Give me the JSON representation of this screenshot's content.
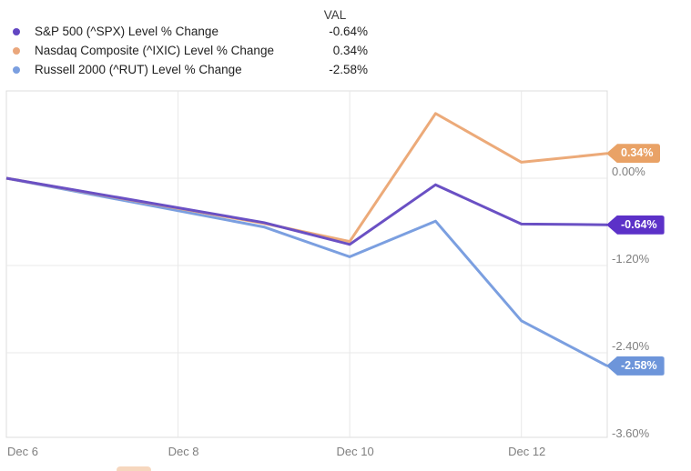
{
  "legend": {
    "val_header": "VAL",
    "items": [
      {
        "label": "S&P 500 (^SPX) Level % Change",
        "value": "-0.64%",
        "color": "#6246c2"
      },
      {
        "label": "Nasdaq Composite (^IXIC) Level % Change",
        "value": "0.34%",
        "color": "#eaa77c"
      },
      {
        "label": "Russell 2000 (^RUT) Level % Change",
        "value": "-2.58%",
        "color": "#7b9fe0"
      }
    ]
  },
  "chart_data": {
    "type": "line",
    "title": "",
    "xlabel": "",
    "ylabel": "Level % Change",
    "grid": true,
    "legend_position": "top-left",
    "x": {
      "unit": "date",
      "points": [
        "Dec 6",
        "Dec 9",
        "Dec 10",
        "Dec 11",
        "Dec 12",
        "Dec 13"
      ],
      "day_offsets": [
        0,
        3,
        4,
        5,
        6,
        7
      ],
      "domain_days": [
        0,
        7
      ],
      "tick_labels": [
        {
          "label": "Dec 6",
          "day": 0
        },
        {
          "label": "Dec 8",
          "day": 2
        },
        {
          "label": "Dec 10",
          "day": 4
        },
        {
          "label": "Dec 12",
          "day": 6
        }
      ]
    },
    "y": {
      "unit": "%",
      "range": [
        -3.5625,
        1.2
      ],
      "gridline_values": [
        0,
        -1.2,
        -2.4
      ],
      "ticks": [
        {
          "label": "0.00%",
          "value": 0
        },
        {
          "label": "-1.20%",
          "value": -1.2
        },
        {
          "label": "-2.40%",
          "value": -2.4
        },
        {
          "label": "-3.60%",
          "value": -3.6
        }
      ]
    },
    "series": [
      {
        "name": "S&P 500 (^SPX) Level % Change",
        "ticker": "^SPX",
        "color_line": "#6a50c4",
        "color_badge": "#5c31c8",
        "values": [
          0,
          -0.61,
          -0.91,
          -0.09,
          -0.63,
          -0.64
        ],
        "end_label": "-0.64%"
      },
      {
        "name": "Nasdaq Composite (^IXIC) Level % Change",
        "ticker": "^IXIC",
        "color_line": "#ecaa79",
        "color_badge": "#e9a266",
        "values": [
          0,
          -0.62,
          -0.87,
          0.89,
          0.22,
          0.34
        ],
        "end_label": "0.34%"
      },
      {
        "name": "Russell 2000 (^RUT) Level % Change",
        "ticker": "^RUT",
        "color_line": "#7b9fe0",
        "color_badge": "#6d95da",
        "values": [
          0,
          -0.67,
          -1.08,
          -0.59,
          -1.96,
          -2.58
        ],
        "end_label": "-2.58%"
      }
    ]
  }
}
